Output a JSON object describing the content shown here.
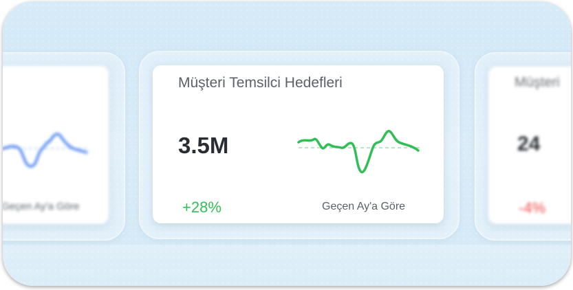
{
  "colors": {
    "positive": "#2fbf55",
    "negative": "#ee4b4b",
    "blue_line": "#4f86ee"
  },
  "cards": {
    "left": {
      "footnote": "Geçen Ay'a Göre"
    },
    "center": {
      "title": "Müşteri Temsilci Hedefleri",
      "value": "3.5M",
      "change": "+28%",
      "footnote": "Geçen Ay'a Göre"
    },
    "right": {
      "title": "Müşteri",
      "value": "24",
      "change": "-4%"
    }
  }
}
